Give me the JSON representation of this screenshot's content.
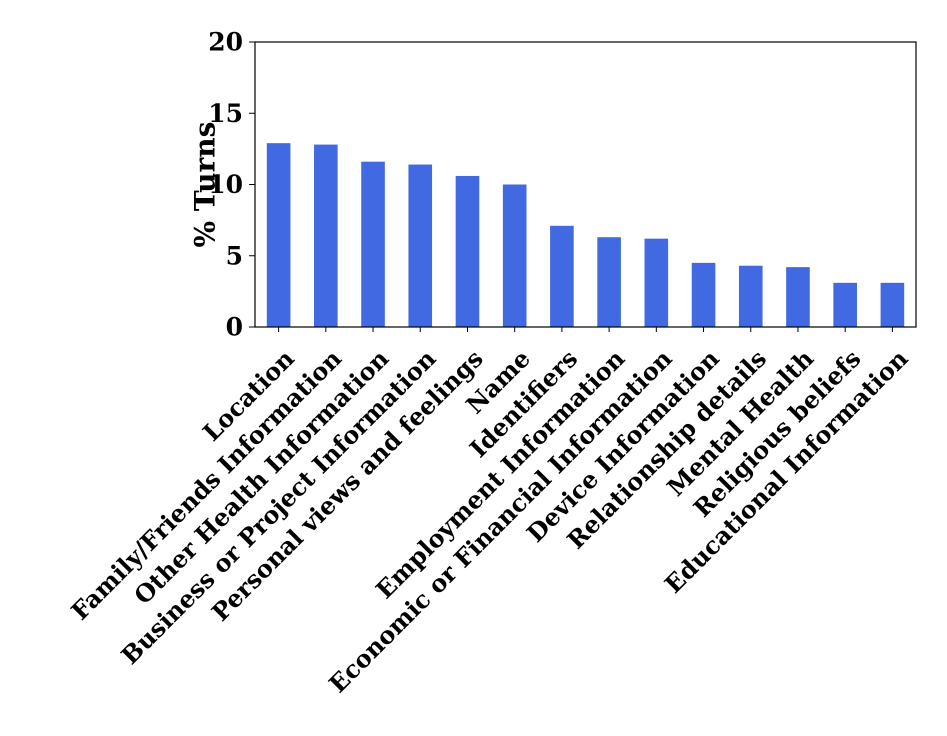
{
  "chart_data": {
    "type": "bar",
    "title": "",
    "xlabel": "",
    "ylabel": "% Turns",
    "ylim": [
      0,
      20
    ],
    "yticks": [
      0,
      5,
      10,
      15,
      20
    ],
    "grid": false,
    "bar_color": "#4169E1",
    "categories": [
      "Location",
      "Family/Friends Information",
      "Other Health Information",
      "Business or Project Information",
      "Personal views and feelings",
      "Name",
      "Identifiers",
      "Employment Information",
      "Economic or Financial Information",
      "Device Information",
      "Relationship details",
      "Mental Health",
      "Religious beliefs",
      "Educational Information"
    ],
    "values": [
      12.9,
      12.8,
      11.6,
      11.4,
      10.6,
      10.0,
      7.1,
      6.3,
      6.2,
      4.5,
      4.3,
      4.2,
      3.1,
      3.1
    ]
  }
}
